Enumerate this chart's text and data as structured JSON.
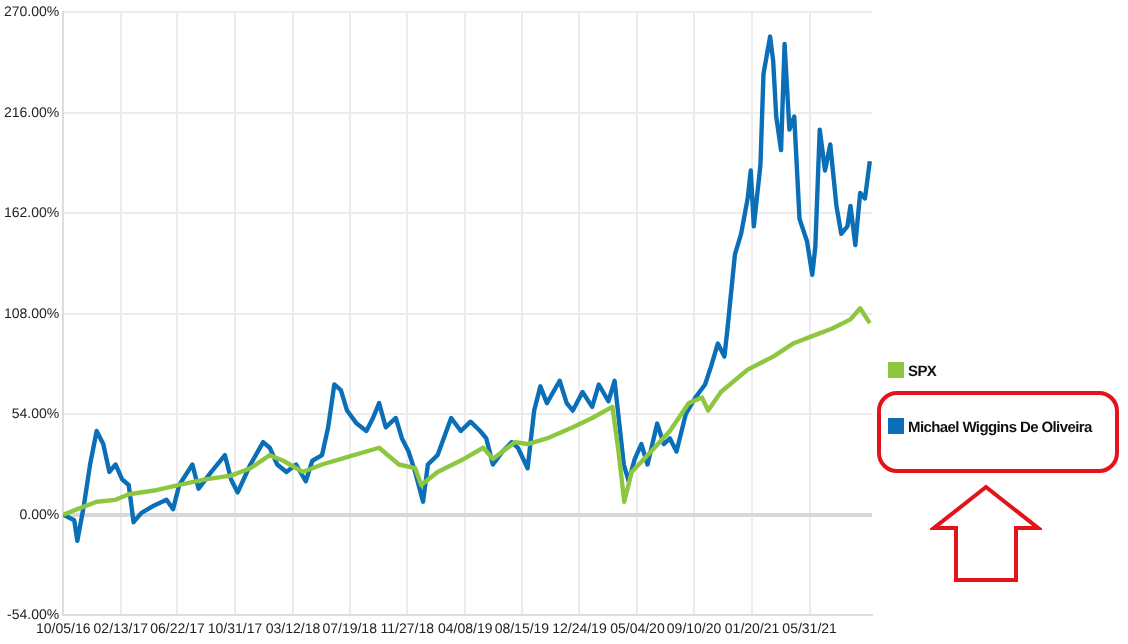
{
  "chart_data": {
    "type": "line",
    "legend": "right",
    "grid": true,
    "marker": "none",
    "line_style": "solid",
    "xlim": [
      "2016-10-05",
      "2021-10-20"
    ],
    "xticks": [
      {
        "value": "2016-10-05",
        "label": "10/05/16"
      },
      {
        "value": "2017-02-13",
        "label": "02/13/17"
      },
      {
        "value": "2017-06-22",
        "label": "06/22/17"
      },
      {
        "value": "2017-10-31",
        "label": "10/31/17"
      },
      {
        "value": "2018-03-12",
        "label": "03/12/18"
      },
      {
        "value": "2018-07-19",
        "label": "07/19/18"
      },
      {
        "value": "2018-11-27",
        "label": "11/27/18"
      },
      {
        "value": "2019-04-08",
        "label": "04/08/19"
      },
      {
        "value": "2019-08-15",
        "label": "08/15/19"
      },
      {
        "value": "2019-12-24",
        "label": "12/24/19"
      },
      {
        "value": "2020-05-04",
        "label": "05/04/20"
      },
      {
        "value": "2020-09-10",
        "label": "09/10/20"
      },
      {
        "value": "2021-01-20",
        "label": "01/20/21"
      },
      {
        "value": "2021-05-31",
        "label": "05/31/21"
      }
    ],
    "ylim": [
      -54,
      270
    ],
    "yticks": [
      {
        "value": -54,
        "label": "-54.00%"
      },
      {
        "value": 0,
        "label": "0.00%"
      },
      {
        "value": 54,
        "label": "54.00%"
      },
      {
        "value": 108,
        "label": "108.00%"
      },
      {
        "value": 162,
        "label": "162.00%"
      },
      {
        "value": 216,
        "label": "216.00%"
      },
      {
        "value": 270,
        "label": "270.00%"
      }
    ],
    "series": [
      {
        "name": "SPX",
        "color": "#8dc63f",
        "x": [
          "2016-10-05",
          "2016-11-06",
          "2016-12-20",
          "2017-02-01",
          "2017-03-03",
          "2017-04-30",
          "2017-06-26",
          "2017-08-24",
          "2017-10-22",
          "2017-12-05",
          "2018-01-18",
          "2018-02-18",
          "2018-04-03",
          "2018-05-17",
          "2018-07-13",
          "2018-09-24",
          "2018-11-08",
          "2018-12-15",
          "2018-12-29",
          "2019-02-04",
          "2019-04-05",
          "2019-05-19",
          "2019-06-10",
          "2019-07-30",
          "2019-08-28",
          "2019-10-11",
          "2019-12-09",
          "2020-01-22",
          "2020-03-08",
          "2020-03-22",
          "2020-04-04",
          "2020-04-21",
          "2020-06-04",
          "2020-07-17",
          "2020-08-29",
          "2020-09-28",
          "2020-10-12",
          "2020-11-10",
          "2021-01-10",
          "2021-03-09",
          "2021-04-23",
          "2021-06-06",
          "2021-07-20",
          "2021-09-01",
          "2021-09-23",
          "2021-10-15"
        ],
        "values": [
          0,
          3,
          7,
          8,
          11,
          13,
          16,
          19,
          21,
          25,
          32,
          29,
          23,
          27,
          31,
          36,
          27,
          25,
          16,
          23,
          30,
          36,
          30,
          39,
          38,
          41,
          47,
          52,
          58,
          34,
          7,
          23,
          34,
          45,
          60,
          63,
          56,
          66,
          78,
          85,
          92,
          96,
          100,
          105,
          111,
          103
        ]
      },
      {
        "name": "Michael Wiggins De Oliveira",
        "color": "#0b6fb8",
        "x": [
          "2016-10-05",
          "2016-10-30",
          "2016-11-06",
          "2016-11-21",
          "2016-12-05",
          "2016-12-20",
          "2017-01-04",
          "2017-01-18",
          "2017-02-01",
          "2017-02-16",
          "2017-03-03",
          "2017-03-14",
          "2017-04-01",
          "2017-04-30",
          "2017-05-28",
          "2017-06-12",
          "2017-06-26",
          "2017-07-26",
          "2017-08-09",
          "2017-09-07",
          "2017-10-08",
          "2017-10-22",
          "2017-11-06",
          "2017-12-05",
          "2018-01-03",
          "2018-01-18",
          "2018-02-04",
          "2018-02-25",
          "2018-03-19",
          "2018-04-10",
          "2018-04-25",
          "2018-05-17",
          "2018-05-31",
          "2018-06-14",
          "2018-06-29",
          "2018-07-13",
          "2018-08-04",
          "2018-08-26",
          "2018-09-10",
          "2018-09-24",
          "2018-10-09",
          "2018-11-01",
          "2018-11-15",
          "2018-11-30",
          "2018-12-15",
          "2019-01-02",
          "2019-01-13",
          "2019-02-04",
          "2019-03-07",
          "2019-03-29",
          "2019-04-20",
          "2019-05-12",
          "2019-05-26",
          "2019-06-10",
          "2019-07-02",
          "2019-07-23",
          "2019-08-06",
          "2019-08-28",
          "2019-09-12",
          "2019-09-26",
          "2019-10-11",
          "2019-11-09",
          "2019-11-25",
          "2019-12-09",
          "2019-12-31",
          "2020-01-22",
          "2020-02-06",
          "2020-02-28",
          "2020-03-13",
          "2020-04-03",
          "2020-04-14",
          "2020-04-28",
          "2020-05-13",
          "2020-05-27",
          "2020-06-18",
          "2020-07-03",
          "2020-07-17",
          "2020-08-01",
          "2020-08-22",
          "2020-09-13",
          "2020-10-05",
          "2020-10-19",
          "2020-11-03",
          "2020-11-18",
          "2020-11-25",
          "2020-12-12",
          "2020-12-26",
          "2021-01-10",
          "2021-01-17",
          "2021-01-24",
          "2021-02-08",
          "2021-02-15",
          "2021-03-02",
          "2021-03-09",
          "2021-03-16",
          "2021-03-27",
          "2021-04-04",
          "2021-04-15",
          "2021-04-26",
          "2021-05-08",
          "2021-05-25",
          "2021-06-06",
          "2021-06-13",
          "2021-06-23",
          "2021-07-05",
          "2021-07-17",
          "2021-07-31",
          "2021-08-11",
          "2021-08-25",
          "2021-09-01",
          "2021-09-12",
          "2021-09-23",
          "2021-10-04",
          "2021-10-15"
        ],
        "values": [
          0,
          -3,
          -14,
          5,
          27,
          45,
          38,
          23,
          27,
          19,
          16,
          -4,
          1,
          5,
          8,
          3,
          16,
          27,
          14,
          23,
          32,
          19,
          12,
          27,
          39,
          36,
          27,
          23,
          27,
          18,
          29,
          32,
          47,
          70,
          67,
          56,
          49,
          45,
          52,
          60,
          47,
          52,
          41,
          34,
          23,
          7,
          27,
          32,
          52,
          45,
          50,
          45,
          41,
          27,
          34,
          39,
          36,
          25,
          56,
          69,
          60,
          72,
          60,
          56,
          66,
          58,
          70,
          61,
          72,
          27,
          18,
          30,
          38,
          27,
          49,
          38,
          41,
          34,
          54,
          63,
          70,
          80,
          92,
          85,
          100,
          140,
          151,
          170,
          185,
          155,
          188,
          237,
          257,
          244,
          214,
          196,
          253,
          207,
          214,
          159,
          147,
          129,
          144,
          207,
          185,
          199,
          166,
          151,
          155,
          166,
          145,
          173,
          170,
          190
        ]
      }
    ]
  }
}
